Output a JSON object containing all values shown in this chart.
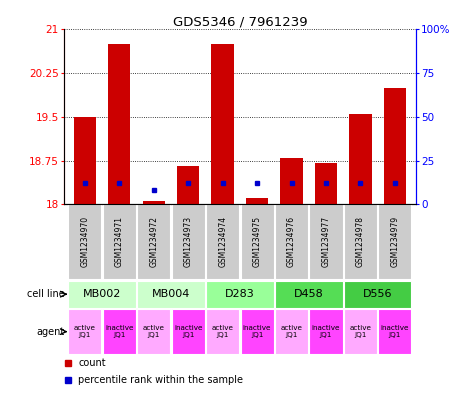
{
  "title": "GDS5346 / 7961239",
  "samples": [
    "GSM1234970",
    "GSM1234971",
    "GSM1234972",
    "GSM1234973",
    "GSM1234974",
    "GSM1234975",
    "GSM1234976",
    "GSM1234977",
    "GSM1234978",
    "GSM1234979"
  ],
  "red_values": [
    19.5,
    20.75,
    18.05,
    18.65,
    20.75,
    18.1,
    18.8,
    18.7,
    19.55,
    20.0
  ],
  "blue_pct": [
    12,
    12,
    8,
    12,
    12,
    12,
    12,
    12,
    12,
    12
  ],
  "ymin": 18.0,
  "ymax": 21.0,
  "yticks": [
    18,
    18.75,
    19.5,
    20.25,
    21
  ],
  "right_yticks": [
    0,
    25,
    50,
    75,
    100
  ],
  "cell_lines": [
    {
      "label": "MB002",
      "cols": [
        0,
        1
      ],
      "color": "#ccffcc"
    },
    {
      "label": "MB004",
      "cols": [
        2,
        3
      ],
      "color": "#ccffcc"
    },
    {
      "label": "D283",
      "cols": [
        4,
        5
      ],
      "color": "#99ff99"
    },
    {
      "label": "D458",
      "cols": [
        6,
        7
      ],
      "color": "#55dd55"
    },
    {
      "label": "D556",
      "cols": [
        8,
        9
      ],
      "color": "#44cc44"
    }
  ],
  "agents": [
    "active\nJQ1",
    "inactive\nJQ1",
    "active\nJQ1",
    "inactive\nJQ1",
    "active\nJQ1",
    "inactive\nJQ1",
    "active\nJQ1",
    "inactive\nJQ1",
    "active\nJQ1",
    "inactive\nJQ1"
  ],
  "agent_colors": [
    "#ffaaff",
    "#ff44ff",
    "#ffaaff",
    "#ff44ff",
    "#ffaaff",
    "#ff44ff",
    "#ffaaff",
    "#ff44ff",
    "#ffaaff",
    "#ff44ff"
  ],
  "bg_color": "#ffffff",
  "bar_color_red": "#cc0000",
  "bar_color_blue": "#0000cc",
  "sample_bg": "#cccccc",
  "dotted_color": "#000000"
}
